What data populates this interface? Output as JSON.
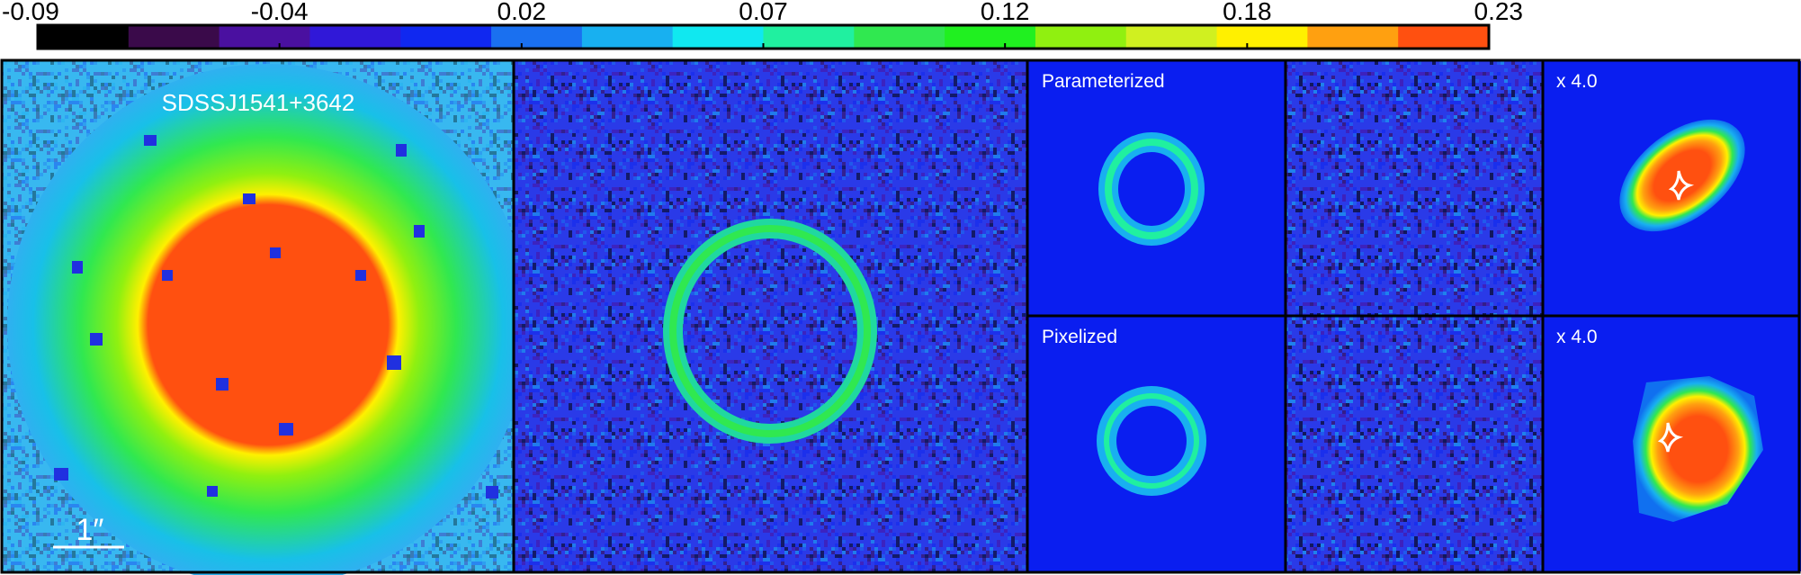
{
  "colorbar": {
    "lim": [
      -0.09,
      0.23
    ],
    "ticks": [
      -0.09,
      {
        "value": -0.0367,
        "label": "-0.04"
      },
      {
        "value": 0.0167,
        "label": "0.02"
      },
      0.07,
      {
        "value": 0.1233,
        "label": "0.12"
      },
      {
        "value": 0.1767,
        "label": "0.18"
      },
      0.23
    ],
    "colors": [
      "#000000",
      "#3a0a4a",
      "#4a10a0",
      "#3018d8",
      "#1028f0",
      "#1a70f0",
      "#18b0f0",
      "#10e8f0",
      "#20f0a0",
      "#30e850",
      "#20f020",
      "#90f010",
      "#d0f020",
      "#fff000",
      "#ffa010",
      "#ff5010"
    ]
  },
  "panels": {
    "target": "SDSSJ1541+3642",
    "scale_bar": "1″",
    "parameterized": "Parameterized",
    "pixelized": "Pixelized",
    "magnification": [
      "x 4.0",
      "x 4.0"
    ]
  }
}
